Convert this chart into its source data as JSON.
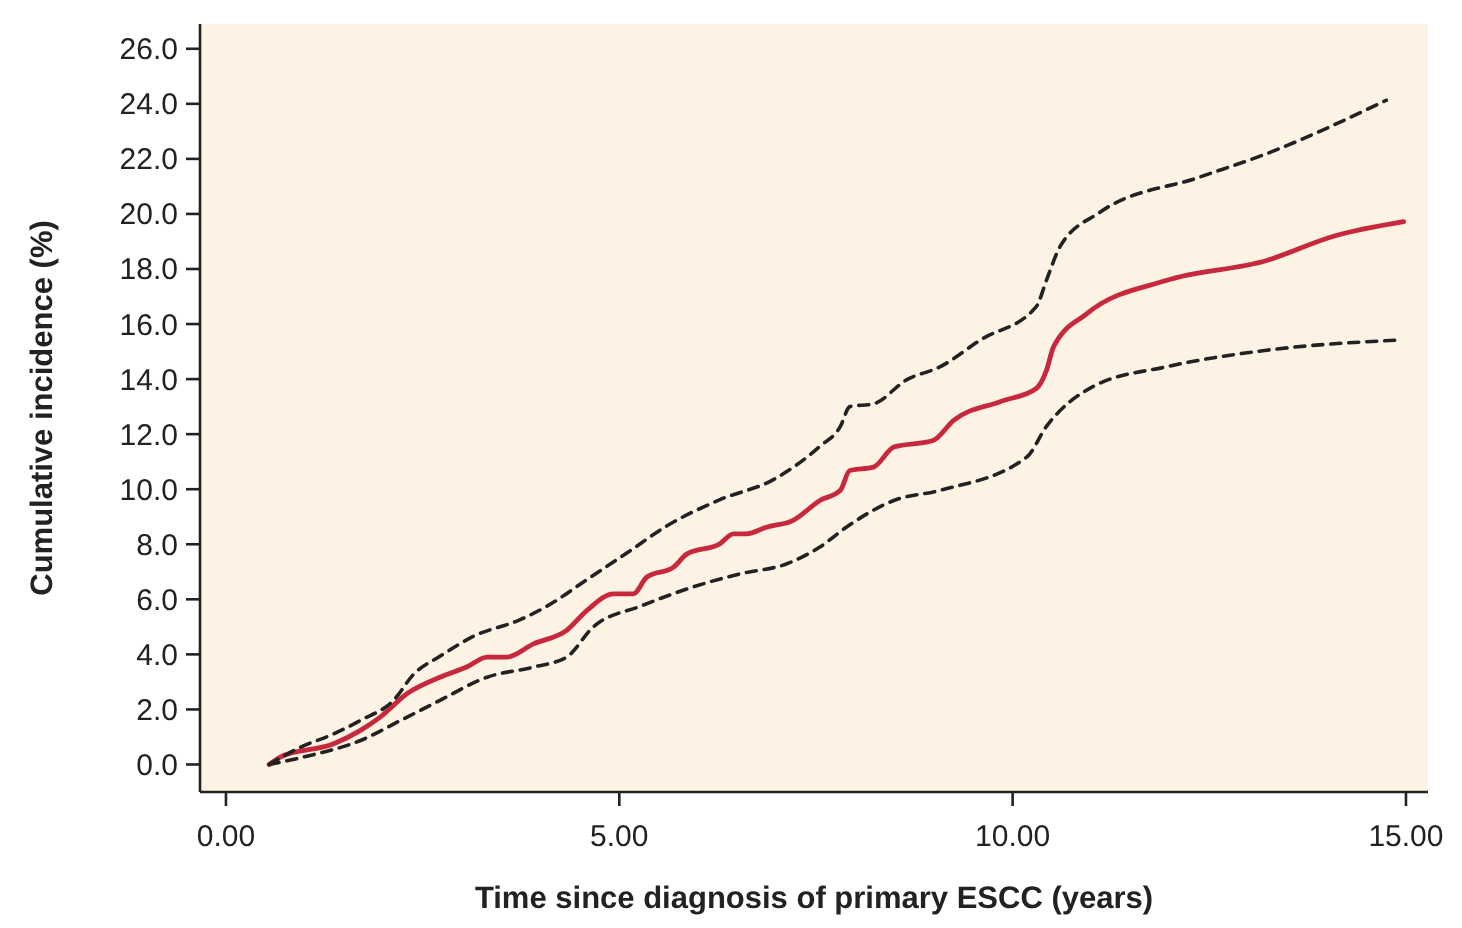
{
  "chart_data": {
    "type": "line",
    "xlabel": "Time since diagnosis of primary ESCC (years)",
    "ylabel": "Cumulative incidence (%)",
    "xlim": [
      -0.33,
      15.28
    ],
    "ylim": [
      -1.0,
      26.9
    ],
    "xticks": [
      {
        "value": 0,
        "label": "0.00"
      },
      {
        "value": 5,
        "label": "5.00"
      },
      {
        "value": 10,
        "label": "10.00"
      },
      {
        "value": 15,
        "label": "15.00"
      }
    ],
    "yticks": [
      {
        "value": 0,
        "label": "0.0"
      },
      {
        "value": 2,
        "label": "2.0"
      },
      {
        "value": 4,
        "label": "4.0"
      },
      {
        "value": 6,
        "label": "6.0"
      },
      {
        "value": 8,
        "label": "8.0"
      },
      {
        "value": 10,
        "label": "10.0"
      },
      {
        "value": 12,
        "label": "12.0"
      },
      {
        "value": 14,
        "label": "14.0"
      },
      {
        "value": 16,
        "label": "16.0"
      },
      {
        "value": 18,
        "label": "18.0"
      },
      {
        "value": 20,
        "label": "20.0"
      },
      {
        "value": 22,
        "label": "22.0"
      },
      {
        "value": 24,
        "label": "24.0"
      },
      {
        "value": 26,
        "label": "26.0"
      }
    ],
    "grid": false,
    "marker": "none",
    "series": [
      {
        "color": "#c8283c",
        "line_style": "solid",
        "x": [
          0.55,
          0.69,
          1.37,
          1.71,
          1.96,
          2.3,
          2.72,
          3.06,
          3.32,
          3.57,
          3.91,
          4.33,
          4.59,
          4.93,
          5.18,
          5.35,
          5.69,
          5.86,
          6.28,
          6.45,
          6.62,
          6.87,
          7.21,
          7.55,
          7.81,
          7.93,
          8.23,
          8.49,
          8.99,
          9.25,
          9.84,
          10.3,
          10.43,
          10.52,
          10.94,
          11.96,
          13.23,
          14.08,
          14.97
        ],
        "values": [
          0,
          0.27,
          0.75,
          1.24,
          1.72,
          2.57,
          3.17,
          3.54,
          3.9,
          3.9,
          4.38,
          4.87,
          5.6,
          6.2,
          6.2,
          6.81,
          7.17,
          7.65,
          8.02,
          8.38,
          8.38,
          8.62,
          8.87,
          9.59,
          9.96,
          10.68,
          10.8,
          11.53,
          11.77,
          12.5,
          13.18,
          13.66,
          14.32,
          15.17,
          16.37,
          17.59,
          18.31,
          19.19,
          19.72
        ]
      },
      {
        "color": "#222222",
        "line_style": "dashed",
        "x": [
          0.55,
          0.95,
          1.37,
          1.71,
          2.13,
          2.39,
          2.72,
          3.15,
          3.74,
          4.08,
          4.59,
          5.1,
          5.6,
          6.28,
          6.96,
          7.55,
          7.81,
          7.93,
          8.23,
          8.65,
          9.08,
          9.59,
          10.3,
          10.43,
          10.6,
          11.11,
          12.38,
          13.23,
          14.75
        ],
        "values": [
          0,
          0.63,
          1.11,
          1.6,
          2.33,
          3.29,
          3.93,
          4.66,
          5.26,
          5.75,
          6.72,
          7.69,
          8.66,
          9.62,
          10.35,
          11.56,
          12.28,
          13.0,
          13.1,
          13.97,
          14.45,
          15.42,
          16.63,
          17.59,
          18.8,
          20.06,
          21.34,
          22.19,
          24.13
        ]
      },
      {
        "color": "#222222",
        "line_style": "dashed",
        "x": [
          0.55,
          1.03,
          1.71,
          2.22,
          2.72,
          3.32,
          3.91,
          4.33,
          4.67,
          5.27,
          5.94,
          6.54,
          7.13,
          7.55,
          7.89,
          8.49,
          9.08,
          10.18,
          10.43,
          11.03,
          11.96,
          13.23,
          14.92
        ],
        "values": [
          0,
          0.3,
          0.87,
          1.6,
          2.33,
          3.17,
          3.54,
          3.9,
          5.0,
          5.75,
          6.45,
          6.93,
          7.29,
          7.9,
          8.63,
          9.59,
          9.96,
          11.17,
          12.28,
          13.74,
          14.45,
          15.05,
          15.42
        ]
      }
    ]
  }
}
